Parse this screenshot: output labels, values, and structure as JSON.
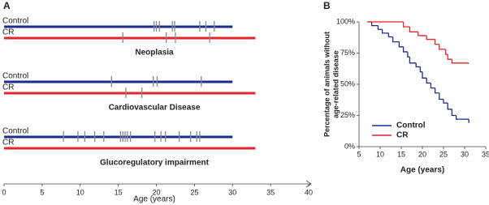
{
  "chart_data": [
    {
      "type": "event-timeline",
      "panel_label": "A",
      "xlabel": "Age (years)",
      "xlim": [
        0,
        40
      ],
      "xticks": [
        0,
        5,
        10,
        15,
        20,
        25,
        30,
        35,
        40
      ],
      "series": [
        {
          "name": "Control",
          "color": "#1d2b8c",
          "end": 30
        },
        {
          "name": "CR",
          "color": "#e3262a",
          "end": 33
        }
      ],
      "event_color": "#8a8a8a",
      "groups": [
        {
          "title": "Neoplasia",
          "events": [
            [
              19.7,
              20.0,
              20.4,
              22.1,
              22.4,
              25.7,
              26.5,
              27.6
            ],
            [
              15.6,
              21.3,
              22.5,
              27.0
            ]
          ]
        },
        {
          "title": "Cardiovascular Disease",
          "events": [
            [
              14.1,
              19.6,
              20.1,
              25.9
            ],
            [
              16.0,
              18.1
            ]
          ]
        },
        {
          "title": "Glucoregulatory impairment",
          "events": [
            [
              7.8,
              9.7,
              10.6,
              11.9,
              13.1,
              15.3,
              15.6,
              15.9,
              16.2,
              16.6,
              19.8,
              20.6,
              21.2,
              23.0,
              24.5,
              25.3,
              25.7
            ],
            []
          ]
        }
      ]
    },
    {
      "type": "step",
      "panel_label": "B",
      "xlabel": "Age (years)",
      "ylabel": [
        "Percentage of animals without",
        "age-related disease"
      ],
      "xlim": [
        5,
        35
      ],
      "xticks": [
        5,
        10,
        15,
        20,
        25,
        30,
        35
      ],
      "ylim": [
        0,
        100
      ],
      "yticks": [
        {
          "value": 0,
          "label": "0%"
        },
        {
          "value": 25,
          "label": "25%"
        },
        {
          "value": 50,
          "label": "50%"
        },
        {
          "value": 75,
          "label": "75%"
        },
        {
          "value": 100,
          "label": "100%"
        }
      ],
      "legend": "lower-left",
      "series": [
        {
          "name": "Control",
          "color": "#1d2b8c",
          "x": [
            7,
            8,
            9.5,
            10.5,
            12,
            13,
            14.5,
            15.5,
            16.5,
            17,
            18.5,
            19.5,
            20,
            21,
            22,
            23,
            24,
            25,
            26,
            27,
            28,
            30,
            31
          ],
          "values": [
            100,
            97,
            94,
            91,
            88,
            84,
            80,
            76,
            72,
            67,
            64,
            60,
            55,
            51,
            47,
            43,
            38,
            35,
            30,
            25,
            22,
            22,
            19
          ]
        },
        {
          "name": "CR",
          "color": "#e3262a",
          "x": [
            7,
            15,
            15.5,
            17,
            19,
            21,
            23,
            24,
            25.5,
            26,
            27,
            31
          ],
          "values": [
            100,
            100,
            96,
            92,
            89,
            86,
            82,
            78,
            74,
            70,
            67,
            67
          ]
        }
      ]
    }
  ]
}
